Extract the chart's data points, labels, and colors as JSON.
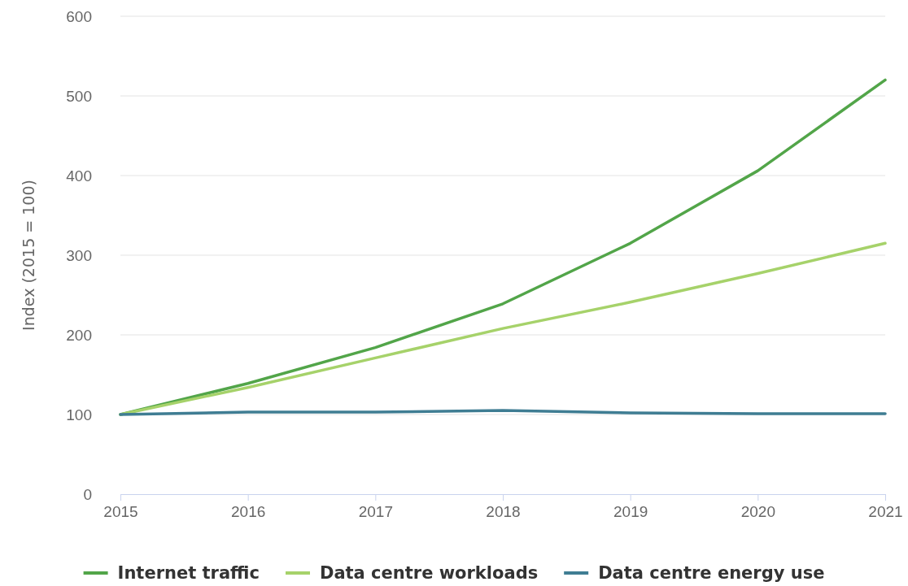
{
  "chart_data": {
    "type": "line",
    "ylabel": "Index (2015 = 100)",
    "x": [
      2015,
      2016,
      2017,
      2018,
      2019,
      2020,
      2021
    ],
    "xlim": [
      2015,
      2021
    ],
    "xticks": [
      2015,
      2016,
      2017,
      2018,
      2019,
      2020,
      2021
    ],
    "ylim": [
      0,
      600
    ],
    "yticks": [
      0,
      100,
      200,
      300,
      400,
      500,
      600
    ],
    "grid": "y",
    "legend": "bottom",
    "marker": "none",
    "line_style": "solid",
    "series": [
      {
        "name": "Internet traffic",
        "color": "#52a549",
        "values": [
          100,
          139,
          184,
          239,
          315,
          406,
          520
        ]
      },
      {
        "name": "Data centre workloads",
        "color": "#a6d26a",
        "values": [
          100,
          134,
          171,
          208,
          241,
          277,
          315
        ]
      },
      {
        "name": "Data centre energy use",
        "color": "#3f7d93",
        "values": [
          100,
          103,
          103,
          105,
          102,
          101,
          101
        ]
      }
    ]
  }
}
